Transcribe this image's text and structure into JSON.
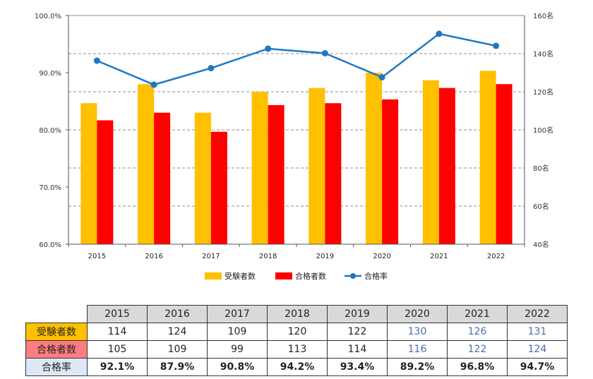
{
  "chart_data": {
    "type": "bar+line",
    "categories": [
      "2015",
      "2016",
      "2017",
      "2018",
      "2019",
      "2020",
      "2021",
      "2022"
    ],
    "series": [
      {
        "name": "受験者数",
        "type": "bar",
        "axis": "right",
        "color": "#ffc000",
        "values": [
          114,
          124,
          109,
          120,
          122,
          130,
          126,
          131
        ]
      },
      {
        "name": "合格者数",
        "type": "bar",
        "axis": "right",
        "color": "#ff0000",
        "values": [
          105,
          109,
          99,
          113,
          114,
          116,
          122,
          124
        ]
      },
      {
        "name": "合格率",
        "type": "line",
        "axis": "left",
        "color": "#1f77c4",
        "values": [
          92.1,
          87.9,
          90.8,
          94.2,
          93.4,
          89.2,
          96.8,
          94.7
        ]
      }
    ],
    "y_left": {
      "range": [
        60,
        100
      ],
      "ticks": [
        "60.0%",
        "70.0%",
        "80.0%",
        "90.0%",
        "100.0%"
      ]
    },
    "y_right": {
      "range": [
        40,
        160
      ],
      "ticks": [
        "40名",
        "60名",
        "80名",
        "100名",
        "120名",
        "140名",
        "160名"
      ]
    },
    "grid": "dashed horizontal",
    "legend": "bottom-center"
  },
  "table": {
    "years": [
      "2015",
      "2016",
      "2017",
      "2018",
      "2019",
      "2020",
      "2021",
      "2022"
    ],
    "rows": [
      {
        "label": "受験者数",
        "values": [
          "114",
          "124",
          "109",
          "120",
          "122",
          "130",
          "126",
          "131"
        ]
      },
      {
        "label": "合格者数",
        "values": [
          "105",
          "109",
          "99",
          "113",
          "114",
          "116",
          "122",
          "124"
        ]
      },
      {
        "label": "合格率",
        "values": [
          "92.1%",
          "87.9%",
          "90.8%",
          "94.2%",
          "93.4%",
          "89.2%",
          "96.8%",
          "94.7%"
        ]
      }
    ]
  }
}
